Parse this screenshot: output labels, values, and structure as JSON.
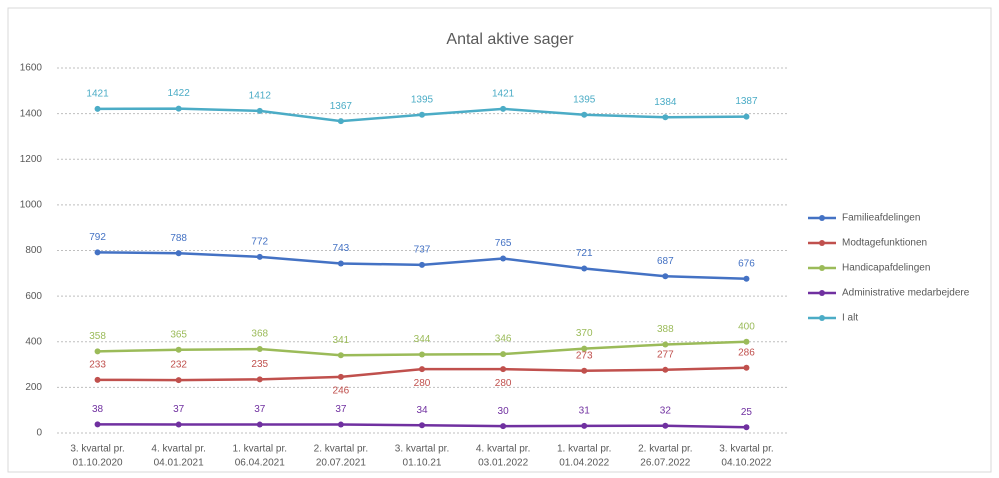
{
  "chart_data": {
    "type": "line",
    "title": "Antal aktive sager",
    "categories": [
      [
        "3. kvartal pr.",
        "01.10.2020"
      ],
      [
        "4. kvartal pr.",
        "04.01.2021"
      ],
      [
        "1. kvartal pr.",
        "06.04.2021"
      ],
      [
        "2. kvartal pr.",
        "20.07.2021"
      ],
      [
        "3. kvartal pr.",
        "01.10.21"
      ],
      [
        "4. kvartal pr.",
        "03.01.2022"
      ],
      [
        "1. kvartal pr.",
        "01.04.2022"
      ],
      [
        "2. kvartal pr.",
        "26.07.2022"
      ],
      [
        "3. kvartal pr.",
        "04.10.2022"
      ]
    ],
    "series": [
      {
        "name": "Familieafdelingen",
        "color": "#4472c4",
        "values": [
          792,
          788,
          772,
          743,
          737,
          765,
          721,
          687,
          676
        ]
      },
      {
        "name": "Modtagefunktionen",
        "color": "#c0504d",
        "values": [
          233,
          232,
          235,
          246,
          280,
          280,
          273,
          277,
          286
        ]
      },
      {
        "name": "Handicapafdelingen",
        "color": "#9bbb59",
        "values": [
          358,
          365,
          368,
          341,
          344,
          346,
          370,
          388,
          400
        ]
      },
      {
        "name": "Administrative medarbejdere",
        "color": "#7030a0",
        "values": [
          38,
          37,
          37,
          37,
          34,
          30,
          31,
          32,
          25
        ]
      },
      {
        "name": "I alt",
        "color": "#4bacc6",
        "values": [
          1421,
          1422,
          1412,
          1367,
          1395,
          1421,
          1395,
          1384,
          1387
        ]
      }
    ],
    "ylim": [
      0,
      1600
    ],
    "yticks": [
      0,
      200,
      400,
      600,
      800,
      1000,
      1200,
      1400,
      1600
    ],
    "grid": true,
    "legend": "right"
  }
}
